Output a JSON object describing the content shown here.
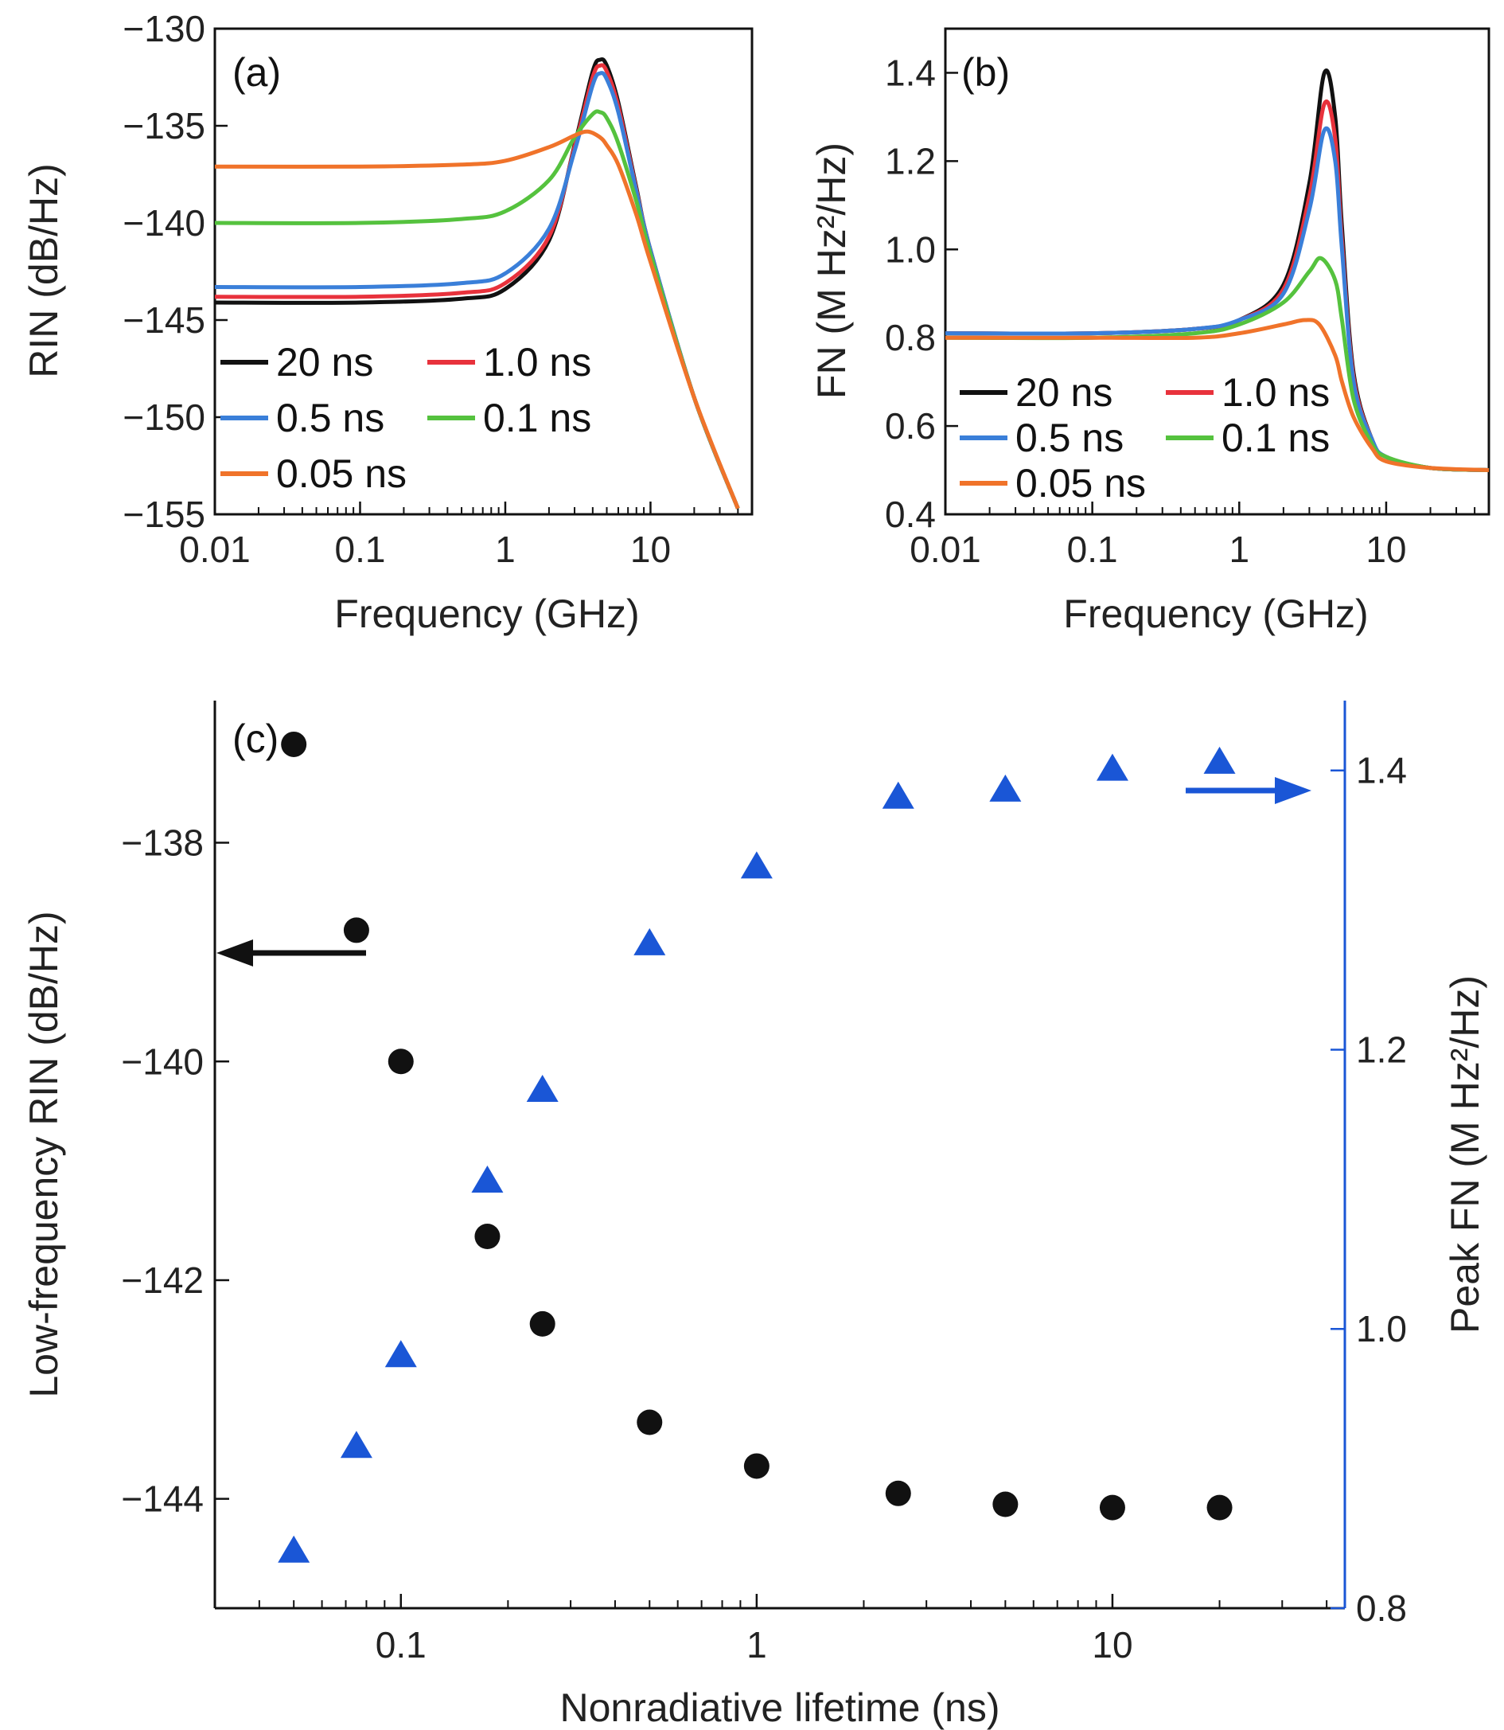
{
  "chart_data": [
    {
      "id": "a",
      "type": "line",
      "panel_label": "(a)",
      "xlabel": "Frequency (GHz)",
      "ylabel": "RIN (dB/Hz)",
      "xscale": "log",
      "xlim": [
        0.01,
        50
      ],
      "ylim": [
        -155,
        -130
      ],
      "xticks": [
        0.01,
        0.1,
        1,
        10
      ],
      "xtick_labels": [
        "0.01",
        "0.1",
        "1",
        "10"
      ],
      "yticks": [
        -130,
        -135,
        -140,
        -145,
        -150,
        -155
      ],
      "ytick_labels": [
        "−130",
        "−135",
        "−140",
        "−145",
        "−150",
        "−155"
      ],
      "legend_position": "bottom-left",
      "series": [
        {
          "name": "20 ns",
          "color": "#111111",
          "x": [
            0.01,
            0.1,
            0.5,
            1,
            2,
            3,
            4,
            4.5,
            5,
            6,
            8,
            10,
            20,
            40
          ],
          "y": [
            -144.1,
            -144.1,
            -143.9,
            -143.4,
            -140.9,
            -136.0,
            -132.2,
            -131.6,
            -131.9,
            -133.8,
            -138.2,
            -141.4,
            -149.0,
            -154.7
          ]
        },
        {
          "name": "1.0 ns",
          "color": "#e8323c",
          "x": [
            0.01,
            0.1,
            0.5,
            1,
            2,
            3,
            4,
            4.5,
            5,
            6,
            8,
            10,
            20,
            40
          ],
          "y": [
            -143.8,
            -143.8,
            -143.6,
            -143.1,
            -140.7,
            -136.1,
            -132.5,
            -131.9,
            -132.2,
            -134.0,
            -138.3,
            -141.4,
            -149.0,
            -154.7
          ]
        },
        {
          "name": "0.5 ns",
          "color": "#3a7fd9",
          "x": [
            0.01,
            0.1,
            0.5,
            1,
            2,
            3,
            4,
            4.5,
            5,
            6,
            8,
            10,
            20,
            40
          ],
          "y": [
            -143.3,
            -143.3,
            -143.1,
            -142.6,
            -140.3,
            -136.3,
            -132.9,
            -132.3,
            -132.6,
            -134.3,
            -138.4,
            -141.4,
            -149.0,
            -154.7
          ]
        },
        {
          "name": "0.1 ns",
          "color": "#55c23e",
          "x": [
            0.01,
            0.1,
            0.5,
            1,
            2,
            3,
            4,
            4.5,
            5,
            6,
            8,
            10,
            20,
            40
          ],
          "y": [
            -140.0,
            -140.0,
            -139.8,
            -139.4,
            -137.8,
            -135.6,
            -134.4,
            -134.3,
            -134.6,
            -135.9,
            -138.9,
            -141.6,
            -149.0,
            -154.7
          ]
        },
        {
          "name": "0.05 ns",
          "color": "#f0732a",
          "x": [
            0.01,
            0.1,
            0.5,
            1,
            2,
            3,
            3.7,
            4.5,
            5,
            6,
            8,
            10,
            20,
            40
          ],
          "y": [
            -137.1,
            -137.1,
            -137.0,
            -136.8,
            -136.1,
            -135.5,
            -135.3,
            -135.6,
            -136.0,
            -137.0,
            -139.6,
            -142.0,
            -149.0,
            -154.7
          ]
        }
      ]
    },
    {
      "id": "b",
      "type": "line",
      "panel_label": "(b)",
      "xlabel": "Frequency (GHz)",
      "ylabel": "FN (M Hz²/Hz)",
      "xscale": "log",
      "xlim": [
        0.01,
        50
      ],
      "ylim": [
        0.4,
        1.5
      ],
      "xticks": [
        0.01,
        0.1,
        1,
        10
      ],
      "xtick_labels": [
        "0.01",
        "0.1",
        "1",
        "10"
      ],
      "yticks": [
        0.4,
        0.6,
        0.8,
        1.0,
        1.2,
        1.4
      ],
      "ytick_labels": [
        "0.4",
        "0.6",
        "0.8",
        "1.0",
        "1.2",
        "1.4"
      ],
      "legend_position": "bottom-left",
      "series": [
        {
          "name": "20 ns",
          "color": "#111111",
          "x": [
            0.01,
            0.1,
            0.5,
            1,
            2,
            3,
            3.8,
            4.5,
            5,
            6,
            8,
            10,
            20,
            50
          ],
          "y": [
            0.81,
            0.81,
            0.82,
            0.84,
            0.92,
            1.15,
            1.4,
            1.3,
            1.05,
            0.72,
            0.57,
            0.53,
            0.505,
            0.5
          ]
        },
        {
          "name": "1.0 ns",
          "color": "#e8323c",
          "x": [
            0.01,
            0.1,
            0.5,
            1,
            2,
            3,
            3.8,
            4.5,
            5,
            6,
            8,
            10,
            20,
            50
          ],
          "y": [
            0.81,
            0.81,
            0.82,
            0.84,
            0.91,
            1.12,
            1.33,
            1.25,
            1.02,
            0.71,
            0.57,
            0.53,
            0.505,
            0.5
          ]
        },
        {
          "name": "0.5 ns",
          "color": "#3a7fd9",
          "x": [
            0.01,
            0.1,
            0.5,
            1,
            2,
            3,
            3.8,
            4.5,
            5,
            6,
            8,
            10,
            20,
            50
          ],
          "y": [
            0.81,
            0.81,
            0.82,
            0.84,
            0.9,
            1.09,
            1.27,
            1.2,
            1.0,
            0.7,
            0.57,
            0.53,
            0.505,
            0.5
          ]
        },
        {
          "name": "0.1 ns",
          "color": "#55c23e",
          "x": [
            0.01,
            0.1,
            0.5,
            1,
            2,
            3,
            3.6,
            4.5,
            5,
            6,
            8,
            10,
            20,
            50
          ],
          "y": [
            0.8,
            0.8,
            0.81,
            0.83,
            0.88,
            0.95,
            0.98,
            0.93,
            0.84,
            0.66,
            0.56,
            0.53,
            0.505,
            0.5
          ]
        },
        {
          "name": "0.05 ns",
          "color": "#f0732a",
          "x": [
            0.01,
            0.1,
            0.5,
            1,
            2,
            2.8,
            3.5,
            4.5,
            5,
            6,
            8,
            10,
            20,
            50
          ],
          "y": [
            0.8,
            0.8,
            0.8,
            0.81,
            0.83,
            0.84,
            0.83,
            0.76,
            0.7,
            0.62,
            0.55,
            0.52,
            0.505,
            0.5
          ]
        }
      ]
    },
    {
      "id": "c",
      "type": "scatter",
      "panel_label": "(c)",
      "xlabel": "Nonradiative lifetime (ns)",
      "ylabel_left": "Low-frequency RIN (dB/Hz)",
      "ylabel_right": "Peak FN (M Hz²/Hz)",
      "xscale": "log",
      "xlim": [
        0.03,
        45
      ],
      "ylim_left": [
        -145,
        -136.7
      ],
      "ylim_right": [
        0.8,
        1.45
      ],
      "xticks": [
        0.1,
        1,
        10
      ],
      "xtick_labels": [
        "0.1",
        "1",
        "10"
      ],
      "yticks_left": [
        -144,
        -142,
        -140,
        -138
      ],
      "ytick_labels_left": [
        "−144",
        "−142",
        "−140",
        "−138"
      ],
      "yticks_right": [
        0.8,
        1.0,
        1.2,
        1.4
      ],
      "ytick_labels_right": [
        "0.8",
        "1.0",
        "1.2",
        "1.4"
      ],
      "right_axis_color": "#1a56d6",
      "series": [
        {
          "name": "Low-frequency RIN",
          "axis": "left",
          "marker": "circle",
          "color": "#111111",
          "x": [
            0.05,
            0.075,
            0.1,
            0.175,
            0.25,
            0.5,
            1,
            2.5,
            5,
            10,
            20
          ],
          "y": [
            -137.1,
            -138.8,
            -140.0,
            -141.6,
            -142.4,
            -143.3,
            -143.7,
            -143.95,
            -144.05,
            -144.08,
            -144.08
          ]
        },
        {
          "name": "Peak FN",
          "axis": "right",
          "marker": "triangle",
          "color": "#1a56d6",
          "x": [
            0.05,
            0.075,
            0.1,
            0.175,
            0.25,
            0.5,
            1,
            2.5,
            5,
            10,
            20
          ],
          "y": [
            0.84,
            0.915,
            0.98,
            1.105,
            1.17,
            1.275,
            1.33,
            1.38,
            1.385,
            1.4,
            1.405
          ]
        }
      ]
    }
  ]
}
